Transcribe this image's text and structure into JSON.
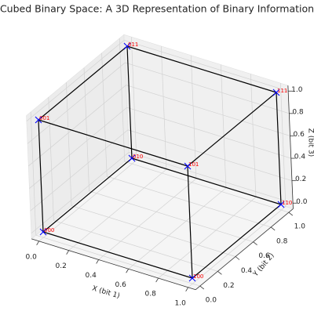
{
  "chart_data": {
    "type": "scatter3d",
    "title": "Cubed Binary Space: A 3D Representation of Binary Information",
    "xlabel": "X (bit 1)",
    "ylabel": "Y (bit 2)",
    "zlabel": "Z (bit 3)",
    "points": {
      "x": [
        0,
        0,
        0,
        0,
        1,
        1,
        1,
        1
      ],
      "y": [
        0,
        0,
        1,
        1,
        0,
        0,
        1,
        1
      ],
      "z": [
        0,
        1,
        0,
        1,
        0,
        1,
        0,
        1
      ],
      "labels": [
        "000",
        "001",
        "010",
        "011",
        "100",
        "101",
        "110",
        "111"
      ]
    },
    "marker_color": "#0000ff",
    "label_color": "#ff0000",
    "line_color": "#000000",
    "xlim": [
      -0.05,
      1.05
    ],
    "ylim": [
      -0.05,
      1.05
    ],
    "zlim": [
      -0.05,
      1.05
    ],
    "xticks": [
      {
        "value": 0,
        "label": "0.0"
      },
      {
        "value": 0.2,
        "label": "0.2"
      },
      {
        "value": 0.4,
        "label": "0.4"
      },
      {
        "value": 0.6,
        "label": "0.6"
      },
      {
        "value": 0.8,
        "label": "0.8"
      },
      {
        "value": 1,
        "label": "1.0"
      }
    ],
    "yticks": [
      {
        "value": 0,
        "label": "0.0"
      },
      {
        "value": 0.2,
        "label": "0.2"
      },
      {
        "value": 0.4,
        "label": "0.4"
      },
      {
        "value": 0.6,
        "label": "0.6"
      },
      {
        "value": 0.8,
        "label": "0.8"
      },
      {
        "value": 1,
        "label": "1.0"
      }
    ],
    "zticks": [
      {
        "value": 0,
        "label": "0.0"
      },
      {
        "value": 0.2,
        "label": "0.2"
      },
      {
        "value": 0.4,
        "label": "0.4"
      },
      {
        "value": 0.6,
        "label": "0.6"
      },
      {
        "value": 0.8,
        "label": "0.8"
      },
      {
        "value": 1,
        "label": "1.0"
      }
    ],
    "grid": true
  }
}
